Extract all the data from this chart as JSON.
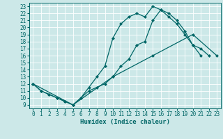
{
  "title": "",
  "xlabel": "Humidex (Indice chaleur)",
  "bg_color": "#cce8e8",
  "line_color": "#006666",
  "grid_color": "#ffffff",
  "xlim": [
    -0.5,
    23.5
  ],
  "ylim": [
    8.5,
    23.5
  ],
  "xticks": [
    0,
    1,
    2,
    3,
    4,
    5,
    6,
    7,
    8,
    9,
    10,
    11,
    12,
    13,
    14,
    15,
    16,
    17,
    18,
    19,
    20,
    21,
    22,
    23
  ],
  "yticks": [
    9,
    10,
    11,
    12,
    13,
    14,
    15,
    16,
    17,
    18,
    19,
    20,
    21,
    22,
    23
  ],
  "line1_x": [
    0,
    1,
    2,
    3,
    4,
    5,
    6,
    7,
    8,
    9,
    10,
    11,
    12,
    13,
    14,
    15,
    16,
    17,
    18,
    19,
    20,
    21,
    22
  ],
  "line1_y": [
    12,
    11,
    10.5,
    10,
    9.5,
    9,
    10,
    11,
    11.5,
    12,
    13,
    14.5,
    15.5,
    17.5,
    18,
    21,
    22.5,
    22,
    21,
    19.5,
    17.5,
    17,
    16
  ],
  "line2_x": [
    0,
    1,
    2,
    3,
    4,
    5,
    6,
    7,
    8,
    9,
    10,
    11,
    12,
    13,
    14,
    15,
    16,
    17,
    18,
    19,
    20,
    21
  ],
  "line2_y": [
    12,
    11,
    10.5,
    10,
    9.5,
    9,
    10,
    11.5,
    13,
    14.5,
    18.5,
    20.5,
    21.5,
    22,
    21.5,
    23,
    22.5,
    21.5,
    20.5,
    19,
    17.5,
    16
  ],
  "line3_x": [
    0,
    5,
    10,
    15,
    20,
    23
  ],
  "line3_y": [
    12,
    9,
    13,
    16,
    19,
    16
  ],
  "marker_size": 2.5,
  "linewidth": 0.9,
  "tick_fontsize": 5.5,
  "xlabel_fontsize": 6.5
}
